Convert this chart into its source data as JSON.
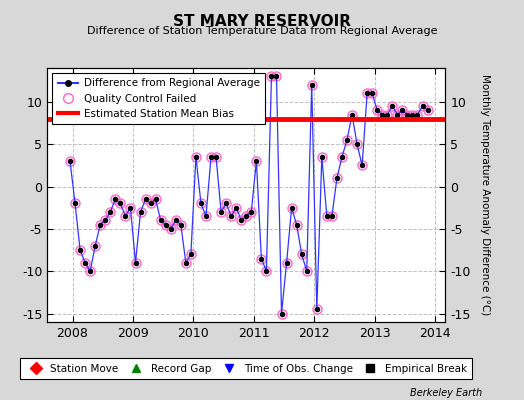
{
  "title": "ST MARY RESERVOIR",
  "subtitle": "Difference of Station Temperature Data from Regional Average",
  "ylabel_right": "Monthly Temperature Anomaly Difference (°C)",
  "xlim": [
    2007.58,
    2014.17
  ],
  "ylim": [
    -16,
    14
  ],
  "yticks": [
    -15,
    -10,
    -5,
    0,
    5,
    10
  ],
  "xticks": [
    2008,
    2009,
    2010,
    2011,
    2012,
    2013,
    2014
  ],
  "bias_line": 8.0,
  "background_color": "#d8d8d8",
  "plot_bg_color": "#ffffff",
  "line_color": "#3333ff",
  "bias_color": "#ff0000",
  "grid_color": "#c0c0c0",
  "watermark": "Berkeley Earth",
  "times": [
    2007.958,
    2008.042,
    2008.125,
    2008.208,
    2008.292,
    2008.375,
    2008.458,
    2008.542,
    2008.625,
    2008.708,
    2008.792,
    2008.875,
    2008.958,
    2009.042,
    2009.125,
    2009.208,
    2009.292,
    2009.375,
    2009.458,
    2009.542,
    2009.625,
    2009.708,
    2009.792,
    2009.875,
    2009.958,
    2010.042,
    2010.125,
    2010.208,
    2010.292,
    2010.375,
    2010.458,
    2010.542,
    2010.625,
    2010.708,
    2010.792,
    2010.875,
    2010.958,
    2011.042,
    2011.125,
    2011.208,
    2011.292,
    2011.375,
    2011.458,
    2011.542,
    2011.625,
    2011.708,
    2011.792,
    2011.875,
    2011.958,
    2012.042,
    2012.125,
    2012.208,
    2012.292,
    2012.375,
    2012.458,
    2012.542,
    2012.625,
    2012.708,
    2012.792,
    2012.875,
    2012.958,
    2013.042,
    2013.125,
    2013.208,
    2013.292,
    2013.375,
    2013.458,
    2013.542,
    2013.625,
    2013.708,
    2013.792,
    2013.875
  ],
  "values": [
    3.0,
    -2.0,
    -7.5,
    -9.0,
    -10.0,
    -7.0,
    -4.5,
    -4.0,
    -3.0,
    -1.5,
    -2.0,
    -3.5,
    -2.5,
    -9.0,
    -3.0,
    -1.5,
    -2.0,
    -1.5,
    -4.0,
    -4.5,
    -5.0,
    -4.0,
    -4.5,
    -9.0,
    -8.0,
    3.5,
    -2.0,
    -3.5,
    3.5,
    3.5,
    -3.0,
    -2.0,
    -3.5,
    -2.5,
    -4.0,
    -3.5,
    -3.0,
    3.0,
    -8.5,
    -10.0,
    13.0,
    13.0,
    -15.0,
    -9.0,
    -2.5,
    -4.5,
    -8.0,
    -10.0,
    12.0,
    -14.5,
    3.5,
    -3.5,
    -3.5,
    1.0,
    3.5,
    5.5,
    8.5,
    5.0,
    2.5,
    11.0,
    11.0,
    9.0,
    8.5,
    8.5,
    9.5,
    8.5,
    9.0,
    8.5,
    8.5,
    8.5,
    9.5,
    9.0
  ],
  "bottom_legend": [
    {
      "label": "Station Move",
      "color": "#ff0000",
      "marker": "D"
    },
    {
      "label": "Record Gap",
      "color": "#008000",
      "marker": "^"
    },
    {
      "label": "Time of Obs. Change",
      "color": "#0000ff",
      "marker": "v"
    },
    {
      "label": "Empirical Break",
      "color": "#000000",
      "marker": "s"
    }
  ]
}
